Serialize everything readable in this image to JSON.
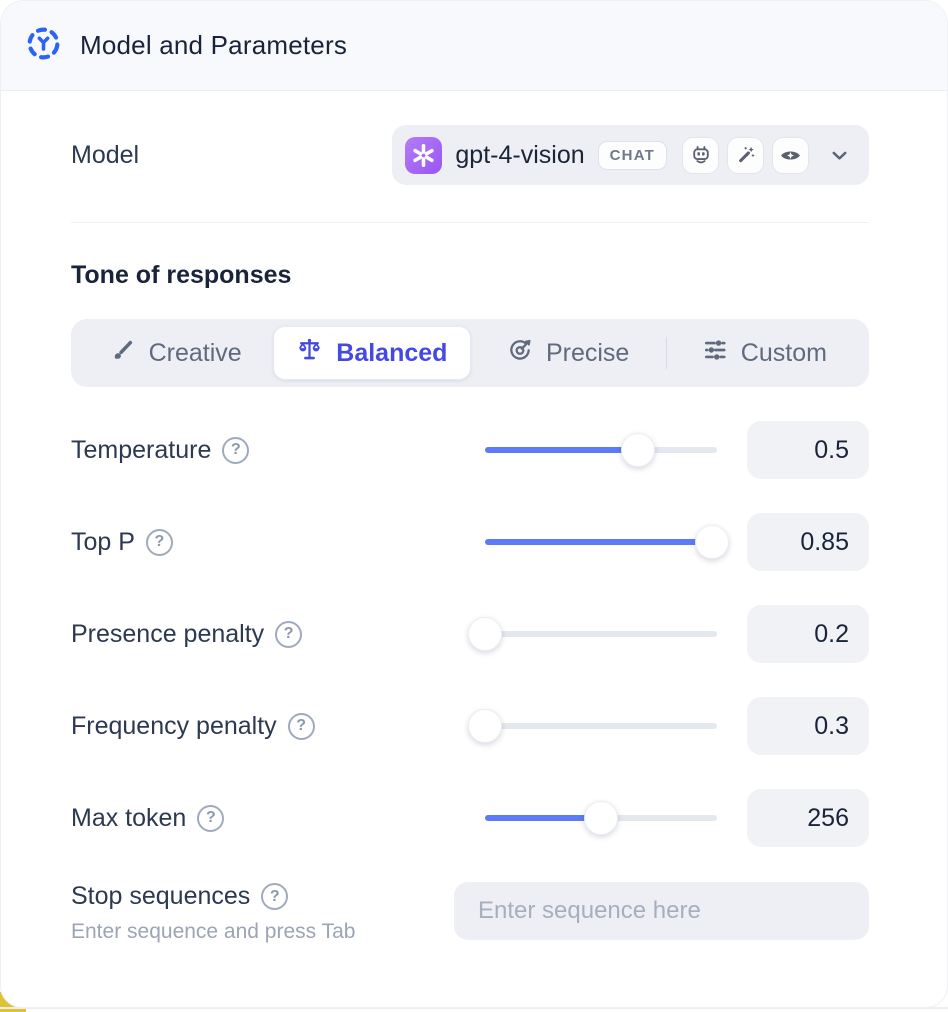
{
  "header": {
    "title": "Model and Parameters",
    "icon": "model-hub-icon"
  },
  "model": {
    "label": "Model",
    "selected_model": "gpt-4-vision",
    "type_badge": "CHAT",
    "logo": "openai-logo",
    "capability_icons": [
      "robot-icon",
      "magic-wand-icon",
      "vision-icon"
    ]
  },
  "tone": {
    "heading": "Tone of responses",
    "options": [
      {
        "label": "Creative",
        "icon": "paintbrush-icon",
        "selected": false
      },
      {
        "label": "Balanced",
        "icon": "balance-scale-icon",
        "selected": true
      },
      {
        "label": "Precise",
        "icon": "target-arrow-icon",
        "selected": false
      },
      {
        "label": "Custom",
        "icon": "sliders-icon",
        "selected": false
      }
    ]
  },
  "parameters": {
    "rows": [
      {
        "label": "Temperature",
        "value": "0.5",
        "fill_percent": 66
      },
      {
        "label": "Top P",
        "value": "0.85",
        "fill_percent": 98
      },
      {
        "label": "Presence penalty",
        "value": "0.2",
        "fill_percent": 0
      },
      {
        "label": "Frequency penalty",
        "value": "0.3",
        "fill_percent": 0
      },
      {
        "label": "Max token",
        "value": "256",
        "fill_percent": 50
      }
    ],
    "help_glyph": "?"
  },
  "stop_sequences": {
    "label": "Stop sequences",
    "hint": "Enter sequence and press Tab",
    "placeholder": "Enter sequence here"
  },
  "colors": {
    "accent_blue": "#2b63f6",
    "slider_blue": "#5d7bf9",
    "selected_indigo": "#4449e2",
    "logo_purple": "#a86ef5",
    "header_bg": "#f8f9fc",
    "control_bg": "#edeff5",
    "underlay_yellow": "#ddc233"
  }
}
